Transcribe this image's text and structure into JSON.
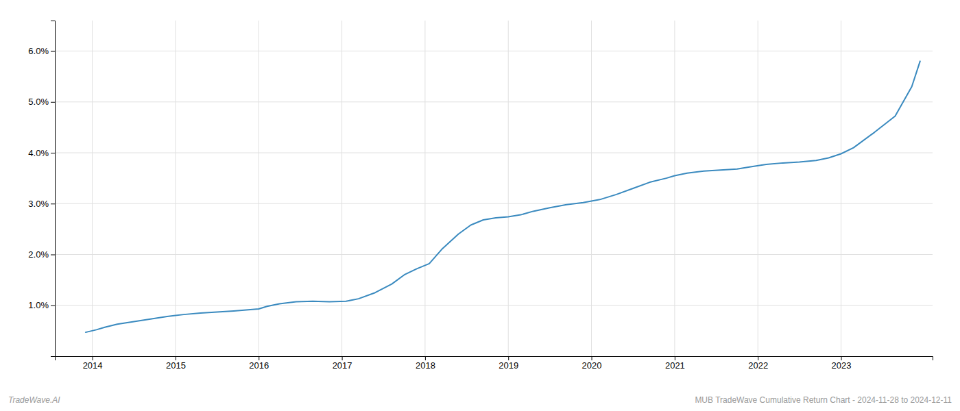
{
  "chart_data": {
    "type": "line",
    "title": "MUB TradeWave Cumulative Return Chart - 2024-11-28 to 2024-12-11",
    "annotations": [
      "TradeWave.AI"
    ],
    "x": [
      2013.92,
      2014.05,
      2014.15,
      2014.3,
      2014.5,
      2014.7,
      2014.9,
      2015.1,
      2015.3,
      2015.5,
      2015.7,
      2015.85,
      2016.0,
      2016.1,
      2016.25,
      2016.45,
      2016.65,
      2016.85,
      2017.05,
      2017.2,
      2017.4,
      2017.6,
      2017.75,
      2017.9,
      2018.05,
      2018.2,
      2018.4,
      2018.55,
      2018.7,
      2018.85,
      2019.0,
      2019.15,
      2019.3,
      2019.5,
      2019.7,
      2019.9,
      2020.1,
      2020.3,
      2020.5,
      2020.7,
      2020.9,
      2021.0,
      2021.15,
      2021.35,
      2021.55,
      2021.75,
      2021.9,
      2022.1,
      2022.3,
      2022.5,
      2022.7,
      2022.85,
      2023.0,
      2023.15,
      2023.4,
      2023.65,
      2023.85,
      2023.95
    ],
    "values": [
      0.47,
      0.52,
      0.57,
      0.63,
      0.68,
      0.73,
      0.78,
      0.82,
      0.85,
      0.87,
      0.89,
      0.91,
      0.93,
      0.98,
      1.03,
      1.07,
      1.08,
      1.07,
      1.08,
      1.13,
      1.25,
      1.42,
      1.6,
      1.72,
      1.82,
      2.1,
      2.4,
      2.58,
      2.68,
      2.72,
      2.74,
      2.78,
      2.85,
      2.92,
      2.98,
      3.02,
      3.08,
      3.18,
      3.3,
      3.42,
      3.5,
      3.55,
      3.6,
      3.64,
      3.66,
      3.68,
      3.72,
      3.77,
      3.8,
      3.82,
      3.85,
      3.9,
      3.98,
      4.1,
      4.4,
      4.72,
      5.3,
      5.8
    ],
    "color": "#3a8abf",
    "xlim": [
      2013.55,
      2024.1
    ],
    "xticks": [
      2014,
      2015,
      2016,
      2017,
      2018,
      2019,
      2020,
      2021,
      2022,
      2023
    ],
    "ylim": [
      0.0,
      6.6
    ],
    "yticks": [
      {
        "value": 1.0,
        "label": "1.0%"
      },
      {
        "value": 2.0,
        "label": "2.0%"
      },
      {
        "value": 3.0,
        "label": "3.0%"
      },
      {
        "value": 4.0,
        "label": "4.0%"
      },
      {
        "value": 5.0,
        "label": "5.0%"
      },
      {
        "value": 6.0,
        "label": "6.0%"
      }
    ],
    "grid": true
  }
}
